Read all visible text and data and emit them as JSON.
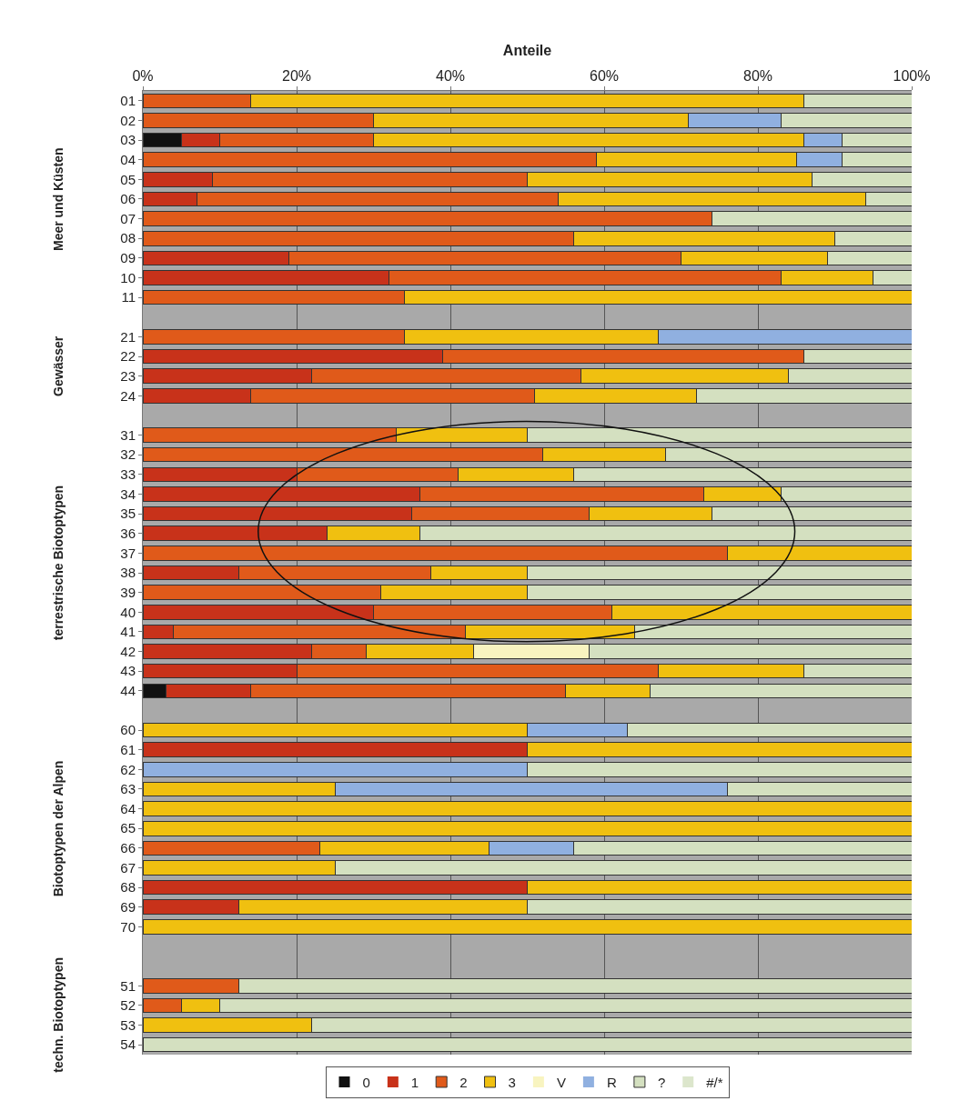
{
  "chart_data": {
    "type": "bar",
    "orientation": "horizontal",
    "stacked": true,
    "xlabel": "Anteile",
    "categories": [
      "01",
      "02",
      "03",
      "04",
      "05",
      "06",
      "07",
      "08",
      "09",
      "10",
      "11",
      null,
      "21",
      "22",
      "23",
      "24",
      null,
      "31",
      "32",
      "33",
      "34",
      "35",
      "36",
      "37",
      "38",
      "39",
      "40",
      "41",
      "42",
      "43",
      "44",
      null,
      "60",
      "61",
      "62",
      "63",
      "64",
      "65",
      "66",
      "67",
      "68",
      "69",
      "70",
      null,
      null,
      "51",
      "52",
      "53",
      "54"
    ],
    "annotations": [
      "Meer und Küsten",
      "Gewässer",
      "terrestrische Biotoptypen",
      "Biotoptypen der Alpen",
      "techn. Biotoptypen"
    ],
    "xlim": [
      0,
      100
    ],
    "xticks": [
      {
        "value": 0,
        "label": "0%"
      },
      {
        "value": 20,
        "label": "20%"
      },
      {
        "value": 40,
        "label": "40%"
      },
      {
        "value": 60,
        "label": "60%"
      },
      {
        "value": 80,
        "label": "80%"
      },
      {
        "value": 100,
        "label": "100%"
      }
    ],
    "grid": "x",
    "legend": "bottom",
    "series": [
      {
        "name": "0",
        "color": "#111111",
        "values": [
          0,
          0,
          5,
          0,
          0,
          0,
          0,
          0,
          0,
          0,
          0,
          null,
          0,
          0,
          0,
          0,
          null,
          0,
          0,
          0,
          0,
          0,
          0,
          0,
          0,
          0,
          0,
          0,
          0,
          0,
          3,
          null,
          0,
          0,
          0,
          0,
          0,
          0,
          0,
          0,
          0,
          0,
          0,
          null,
          null,
          0,
          0,
          0,
          0
        ]
      },
      {
        "name": "1",
        "color": "#c8321a",
        "values": [
          0,
          0,
          5,
          0,
          9,
          7,
          0,
          0,
          19,
          32,
          0,
          null,
          0,
          39,
          22,
          14,
          null,
          0,
          0,
          20,
          36,
          35,
          24,
          0,
          12.5,
          0,
          30,
          4,
          22,
          20,
          11,
          null,
          0,
          50,
          0,
          0,
          0,
          0,
          0,
          0,
          50,
          12.5,
          0,
          null,
          null,
          0,
          0,
          0,
          0
        ]
      },
      {
        "name": "2",
        "color": "#e05a1a",
        "values": [
          14,
          30,
          20,
          59,
          41,
          47,
          74,
          56,
          51,
          51,
          34,
          null,
          34,
          47,
          35,
          37,
          null,
          33,
          52,
          21,
          37,
          23,
          0,
          76,
          25,
          31,
          31,
          38,
          7,
          47,
          41,
          null,
          0,
          0,
          0,
          0,
          0,
          0,
          23,
          0,
          0,
          0,
          0,
          null,
          null,
          12.5,
          5,
          0,
          0
        ]
      },
      {
        "name": "3",
        "color": "#f0c010",
        "values": [
          72,
          41,
          56,
          26,
          37,
          40,
          0,
          34,
          19,
          12,
          66,
          null,
          33,
          0,
          27,
          21,
          null,
          17,
          16,
          15,
          10,
          16,
          12,
          24,
          12.5,
          19,
          39,
          22,
          14,
          19,
          11,
          null,
          50,
          50,
          0,
          25,
          100,
          100,
          22,
          25,
          50,
          37.5,
          100,
          null,
          null,
          0,
          5,
          22,
          0
        ]
      },
      {
        "name": "V",
        "color": "#f8f4c0",
        "values": [
          0,
          0,
          0,
          0,
          0,
          0,
          0,
          0,
          0,
          0,
          0,
          null,
          0,
          0,
          0,
          0,
          null,
          0,
          0,
          0,
          0,
          0,
          0,
          0,
          0,
          0,
          0,
          0,
          15,
          0,
          0,
          null,
          0,
          0,
          0,
          0,
          0,
          0,
          0,
          0,
          0,
          0,
          0,
          null,
          null,
          0,
          0,
          0,
          0
        ]
      },
      {
        "name": "R",
        "color": "#90b0e0",
        "values": [
          0,
          12,
          5,
          6,
          0,
          0,
          0,
          0,
          0,
          0,
          0,
          null,
          33,
          0,
          0,
          0,
          null,
          0,
          0,
          0,
          0,
          0,
          0,
          0,
          0,
          0,
          0,
          0,
          0,
          0,
          0,
          null,
          13,
          0,
          50,
          51,
          0,
          0,
          11,
          0,
          0,
          0,
          0,
          null,
          null,
          0,
          0,
          0,
          0
        ]
      },
      {
        "name": "?",
        "color": "#d4e0c0",
        "values": [
          14,
          17,
          9,
          9,
          13,
          6,
          26,
          10,
          11,
          5,
          0,
          null,
          0,
          14,
          16,
          28,
          null,
          50,
          32,
          44,
          17,
          26,
          64,
          0,
          50,
          50,
          0,
          36,
          42,
          14,
          34,
          null,
          37,
          0,
          50,
          24,
          0,
          0,
          44,
          75,
          0,
          50,
          0,
          null,
          null,
          87.5,
          90,
          78,
          100
        ]
      },
      {
        "name": "#/*",
        "color": "#dce6cc",
        "values": [
          null,
          null,
          null,
          null,
          null,
          null,
          null,
          null,
          null,
          null,
          null,
          null,
          null,
          null,
          null,
          null,
          null,
          null,
          null,
          null,
          null,
          null,
          null,
          null,
          null,
          null,
          null,
          null,
          null,
          null,
          null,
          null,
          null,
          null,
          null,
          null,
          null,
          null,
          null,
          null,
          null,
          null,
          null,
          null,
          null,
          null,
          null,
          null,
          null
        ]
      }
    ]
  }
}
